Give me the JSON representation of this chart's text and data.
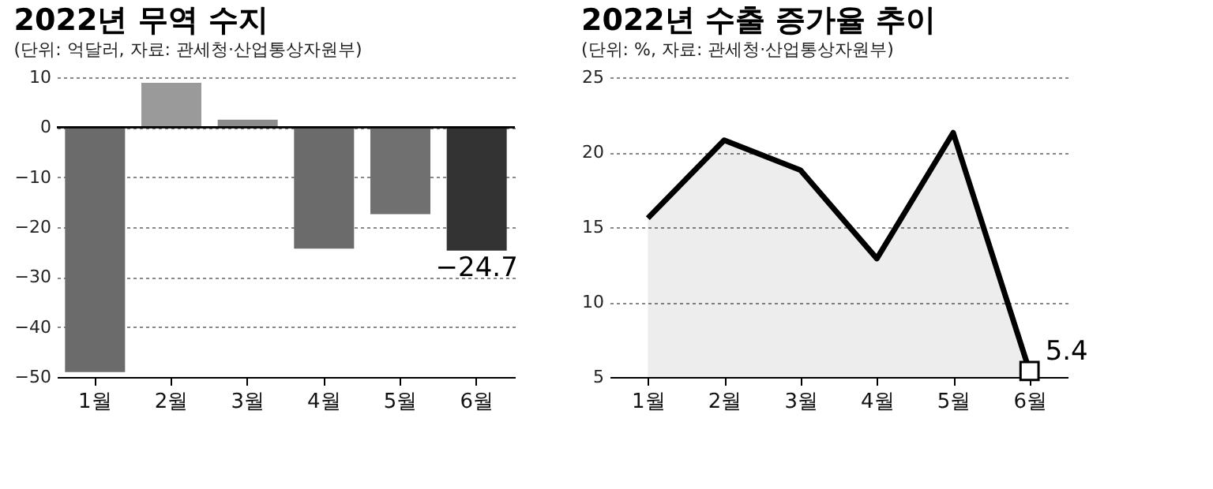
{
  "chart_data": [
    {
      "type": "bar",
      "title": "2022년 무역 수지",
      "subtitle": "(단위: 억달러, 자료: 관세청·산업통상자원부)",
      "categories": [
        "1월",
        "2월",
        "3월",
        "4월",
        "5월",
        "6월"
      ],
      "values": [
        -49,
        8.9,
        1.5,
        -24.3,
        -17.4,
        -24.7
      ],
      "colors": [
        "#6b6b6b",
        "#9a9a9a",
        "#8c8c8c",
        "#6b6b6b",
        "#707070",
        "#333333"
      ],
      "value_labels": [
        null,
        null,
        null,
        null,
        null,
        "−24.7"
      ],
      "ylim": [
        -50,
        10
      ],
      "yticks": [
        10,
        0,
        -10,
        -20,
        -30,
        -40,
        -50
      ],
      "grid": "y"
    },
    {
      "type": "line",
      "title": "2022년 수출 증가율 추이",
      "subtitle": "(단위: %, 자료: 관세청·산업통상자원부)",
      "categories": [
        "1월",
        "2월",
        "3월",
        "4월",
        "5월",
        "6월"
      ],
      "series": [
        {
          "type": "area",
          "color": "#000000",
          "values": [
            15.6,
            20.8,
            18.8,
            12.9,
            21.3,
            5.4
          ],
          "value_labels": [
            null,
            null,
            null,
            null,
            null,
            "5.4"
          ]
        }
      ],
      "ylim": [
        5,
        25
      ],
      "yticks": [
        5,
        10,
        15,
        20,
        25
      ],
      "grid": "y"
    }
  ]
}
